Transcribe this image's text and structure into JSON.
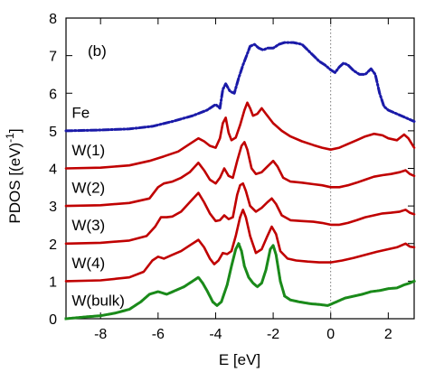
{
  "chart_data": {
    "type": "line",
    "panel_label": "(b)",
    "xlabel": "E [eV]",
    "ylabel": "PDOS [(eV)",
    "ylabel_sup": "-1",
    "ylabel_tail": "]",
    "xlim": [
      -9.2,
      2.9
    ],
    "ylim": [
      0,
      8
    ],
    "x_ticks": [
      -8,
      -6,
      -4,
      -2,
      0,
      2
    ],
    "y_ticks": [
      0,
      1,
      2,
      3,
      4,
      5,
      6,
      7,
      8
    ],
    "fermi_level_line": 0,
    "grid": false,
    "series": [
      {
        "name": "Fe",
        "color": "#1a1aa8",
        "style": "dash-dot",
        "label_anchor": [
          -9.0,
          5.35
        ],
        "points": [
          [
            -9.2,
            5.0
          ],
          [
            -8.0,
            5.02
          ],
          [
            -7.0,
            5.05
          ],
          [
            -6.2,
            5.12
          ],
          [
            -5.5,
            5.25
          ],
          [
            -4.8,
            5.4
          ],
          [
            -4.3,
            5.55
          ],
          [
            -4.0,
            5.7
          ],
          [
            -3.85,
            5.6
          ],
          [
            -3.75,
            6.1
          ],
          [
            -3.65,
            6.25
          ],
          [
            -3.5,
            6.05
          ],
          [
            -3.35,
            6.0
          ],
          [
            -3.2,
            6.4
          ],
          [
            -3.05,
            6.75
          ],
          [
            -2.9,
            7.05
          ],
          [
            -2.8,
            7.25
          ],
          [
            -2.65,
            7.3
          ],
          [
            -2.5,
            7.2
          ],
          [
            -2.35,
            7.15
          ],
          [
            -2.2,
            7.2
          ],
          [
            -2.0,
            7.2
          ],
          [
            -1.8,
            7.3
          ],
          [
            -1.6,
            7.35
          ],
          [
            -1.3,
            7.35
          ],
          [
            -1.0,
            7.3
          ],
          [
            -0.8,
            7.15
          ],
          [
            -0.6,
            7.0
          ],
          [
            -0.4,
            6.85
          ],
          [
            -0.2,
            6.75
          ],
          [
            0.0,
            6.62
          ],
          [
            0.15,
            6.55
          ],
          [
            0.3,
            6.7
          ],
          [
            0.45,
            6.8
          ],
          [
            0.6,
            6.75
          ],
          [
            0.8,
            6.6
          ],
          [
            1.0,
            6.5
          ],
          [
            1.2,
            6.5
          ],
          [
            1.4,
            6.65
          ],
          [
            1.55,
            6.5
          ],
          [
            1.7,
            6.0
          ],
          [
            1.85,
            5.65
          ],
          [
            2.0,
            5.55
          ],
          [
            2.3,
            5.45
          ],
          [
            2.6,
            5.35
          ],
          [
            2.9,
            5.25
          ]
        ]
      },
      {
        "name": "W(1)",
        "color": "#c00000",
        "style": "solid",
        "label_anchor": [
          -9.0,
          4.35
        ],
        "points": [
          [
            -9.2,
            4.0
          ],
          [
            -8.0,
            4.02
          ],
          [
            -7.0,
            4.08
          ],
          [
            -6.3,
            4.2
          ],
          [
            -5.8,
            4.32
          ],
          [
            -5.3,
            4.45
          ],
          [
            -4.9,
            4.65
          ],
          [
            -4.6,
            4.8
          ],
          [
            -4.4,
            4.72
          ],
          [
            -4.2,
            4.6
          ],
          [
            -4.0,
            4.55
          ],
          [
            -3.85,
            4.8
          ],
          [
            -3.75,
            5.2
          ],
          [
            -3.65,
            5.35
          ],
          [
            -3.55,
            4.95
          ],
          [
            -3.45,
            4.75
          ],
          [
            -3.3,
            4.82
          ],
          [
            -3.15,
            5.15
          ],
          [
            -3.0,
            5.55
          ],
          [
            -2.9,
            5.75
          ],
          [
            -2.8,
            5.6
          ],
          [
            -2.7,
            5.4
          ],
          [
            -2.55,
            5.45
          ],
          [
            -2.4,
            5.6
          ],
          [
            -2.25,
            5.45
          ],
          [
            -2.0,
            5.2
          ],
          [
            -1.7,
            5.0
          ],
          [
            -1.4,
            4.85
          ],
          [
            -1.0,
            4.72
          ],
          [
            -0.6,
            4.62
          ],
          [
            -0.3,
            4.55
          ],
          [
            0.0,
            4.5
          ],
          [
            0.3,
            4.55
          ],
          [
            0.6,
            4.65
          ],
          [
            0.9,
            4.75
          ],
          [
            1.2,
            4.85
          ],
          [
            1.5,
            4.92
          ],
          [
            1.8,
            4.88
          ],
          [
            2.0,
            4.8
          ],
          [
            2.3,
            4.75
          ],
          [
            2.55,
            4.9
          ],
          [
            2.7,
            4.8
          ],
          [
            2.9,
            4.55
          ]
        ]
      },
      {
        "name": "W(2)",
        "color": "#c00000",
        "style": "solid",
        "label_anchor": [
          -9.0,
          3.35
        ],
        "points": [
          [
            -9.2,
            3.0
          ],
          [
            -8.0,
            3.02
          ],
          [
            -7.0,
            3.08
          ],
          [
            -6.3,
            3.2
          ],
          [
            -6.0,
            3.5
          ],
          [
            -5.8,
            3.6
          ],
          [
            -5.5,
            3.65
          ],
          [
            -5.2,
            3.75
          ],
          [
            -4.9,
            3.9
          ],
          [
            -4.6,
            4.15
          ],
          [
            -4.4,
            3.95
          ],
          [
            -4.2,
            3.7
          ],
          [
            -4.0,
            3.6
          ],
          [
            -3.85,
            3.75
          ],
          [
            -3.7,
            4.0
          ],
          [
            -3.55,
            3.8
          ],
          [
            -3.4,
            3.75
          ],
          [
            -3.25,
            4.2
          ],
          [
            -3.1,
            4.6
          ],
          [
            -3.0,
            4.7
          ],
          [
            -2.9,
            4.5
          ],
          [
            -2.75,
            4.0
          ],
          [
            -2.6,
            3.85
          ],
          [
            -2.4,
            3.9
          ],
          [
            -2.2,
            4.05
          ],
          [
            -2.0,
            4.2
          ],
          [
            -1.85,
            4.05
          ],
          [
            -1.65,
            3.75
          ],
          [
            -1.4,
            3.65
          ],
          [
            -1.0,
            3.62
          ],
          [
            -0.6,
            3.58
          ],
          [
            -0.3,
            3.55
          ],
          [
            0.0,
            3.5
          ],
          [
            0.3,
            3.5
          ],
          [
            0.6,
            3.55
          ],
          [
            0.9,
            3.62
          ],
          [
            1.2,
            3.7
          ],
          [
            1.5,
            3.78
          ],
          [
            1.8,
            3.82
          ],
          [
            2.1,
            3.85
          ],
          [
            2.4,
            3.9
          ],
          [
            2.6,
            3.95
          ],
          [
            2.75,
            3.85
          ],
          [
            2.9,
            3.8
          ]
        ]
      },
      {
        "name": "W(3)",
        "color": "#c00000",
        "style": "solid",
        "label_anchor": [
          -9.0,
          2.35
        ],
        "points": [
          [
            -9.2,
            2.0
          ],
          [
            -8.0,
            2.02
          ],
          [
            -7.0,
            2.08
          ],
          [
            -6.4,
            2.2
          ],
          [
            -6.1,
            2.45
          ],
          [
            -5.9,
            2.7
          ],
          [
            -5.7,
            2.7
          ],
          [
            -5.5,
            2.72
          ],
          [
            -5.2,
            2.85
          ],
          [
            -4.9,
            3.1
          ],
          [
            -4.6,
            3.35
          ],
          [
            -4.4,
            3.1
          ],
          [
            -4.2,
            2.8
          ],
          [
            -4.0,
            2.6
          ],
          [
            -3.85,
            2.62
          ],
          [
            -3.7,
            2.75
          ],
          [
            -3.55,
            2.65
          ],
          [
            -3.4,
            2.7
          ],
          [
            -3.25,
            3.3
          ],
          [
            -3.15,
            3.55
          ],
          [
            -3.05,
            3.6
          ],
          [
            -2.95,
            3.4
          ],
          [
            -2.8,
            3.0
          ],
          [
            -2.6,
            2.85
          ],
          [
            -2.4,
            2.95
          ],
          [
            -2.2,
            3.1
          ],
          [
            -2.05,
            3.2
          ],
          [
            -1.9,
            3.05
          ],
          [
            -1.7,
            2.75
          ],
          [
            -1.4,
            2.62
          ],
          [
            -1.0,
            2.6
          ],
          [
            -0.6,
            2.58
          ],
          [
            -0.3,
            2.55
          ],
          [
            0.0,
            2.5
          ],
          [
            0.3,
            2.5
          ],
          [
            0.6,
            2.55
          ],
          [
            0.9,
            2.62
          ],
          [
            1.2,
            2.7
          ],
          [
            1.5,
            2.75
          ],
          [
            1.8,
            2.8
          ],
          [
            2.1,
            2.82
          ],
          [
            2.4,
            2.85
          ],
          [
            2.6,
            2.9
          ],
          [
            2.75,
            2.82
          ],
          [
            2.9,
            2.78
          ]
        ]
      },
      {
        "name": "W(4)",
        "color": "#c00000",
        "style": "solid",
        "label_anchor": [
          -9.0,
          1.35
        ],
        "points": [
          [
            -9.2,
            1.0
          ],
          [
            -8.0,
            1.02
          ],
          [
            -7.0,
            1.1
          ],
          [
            -6.5,
            1.25
          ],
          [
            -6.2,
            1.55
          ],
          [
            -6.0,
            1.65
          ],
          [
            -5.8,
            1.6
          ],
          [
            -5.5,
            1.7
          ],
          [
            -5.2,
            1.8
          ],
          [
            -4.9,
            1.95
          ],
          [
            -4.6,
            2.1
          ],
          [
            -4.4,
            1.9
          ],
          [
            -4.2,
            1.6
          ],
          [
            -4.05,
            1.45
          ],
          [
            -3.9,
            1.55
          ],
          [
            -3.75,
            1.75
          ],
          [
            -3.6,
            1.72
          ],
          [
            -3.45,
            1.8
          ],
          [
            -3.3,
            2.2
          ],
          [
            -3.15,
            2.7
          ],
          [
            -3.05,
            2.9
          ],
          [
            -2.95,
            2.7
          ],
          [
            -2.8,
            2.2
          ],
          [
            -2.6,
            1.75
          ],
          [
            -2.4,
            1.85
          ],
          [
            -2.2,
            2.2
          ],
          [
            -2.05,
            2.45
          ],
          [
            -1.9,
            2.25
          ],
          [
            -1.75,
            1.8
          ],
          [
            -1.5,
            1.6
          ],
          [
            -1.2,
            1.55
          ],
          [
            -0.8,
            1.52
          ],
          [
            -0.4,
            1.5
          ],
          [
            0.0,
            1.5
          ],
          [
            0.4,
            1.55
          ],
          [
            0.8,
            1.62
          ],
          [
            1.2,
            1.7
          ],
          [
            1.6,
            1.78
          ],
          [
            2.0,
            1.85
          ],
          [
            2.3,
            1.9
          ],
          [
            2.6,
            2.0
          ],
          [
            2.75,
            1.92
          ],
          [
            2.9,
            1.9
          ]
        ]
      },
      {
        "name": "W(bulk)",
        "color": "#1a8a1a",
        "style": "dotted",
        "label_anchor": [
          -9.0,
          0.35
        ],
        "points": [
          [
            -9.2,
            0.0
          ],
          [
            -8.5,
            0.05
          ],
          [
            -8.0,
            0.08
          ],
          [
            -7.5,
            0.15
          ],
          [
            -7.0,
            0.25
          ],
          [
            -6.6,
            0.45
          ],
          [
            -6.3,
            0.65
          ],
          [
            -6.0,
            0.72
          ],
          [
            -5.7,
            0.65
          ],
          [
            -5.4,
            0.75
          ],
          [
            -5.1,
            0.85
          ],
          [
            -4.8,
            1.0
          ],
          [
            -4.6,
            1.1
          ],
          [
            -4.45,
            0.95
          ],
          [
            -4.3,
            0.75
          ],
          [
            -4.1,
            0.45
          ],
          [
            -3.95,
            0.35
          ],
          [
            -3.8,
            0.45
          ],
          [
            -3.6,
            0.9
          ],
          [
            -3.45,
            1.4
          ],
          [
            -3.3,
            1.85
          ],
          [
            -3.2,
            2.0
          ],
          [
            -3.1,
            1.8
          ],
          [
            -3.0,
            1.4
          ],
          [
            -2.85,
            1.1
          ],
          [
            -2.7,
            0.95
          ],
          [
            -2.55,
            0.85
          ],
          [
            -2.4,
            0.95
          ],
          [
            -2.25,
            1.3
          ],
          [
            -2.1,
            1.85
          ],
          [
            -2.0,
            1.95
          ],
          [
            -1.9,
            1.7
          ],
          [
            -1.75,
            1.0
          ],
          [
            -1.6,
            0.6
          ],
          [
            -1.4,
            0.5
          ],
          [
            -1.1,
            0.45
          ],
          [
            -0.7,
            0.4
          ],
          [
            -0.4,
            0.38
          ],
          [
            -0.1,
            0.35
          ],
          [
            0.2,
            0.45
          ],
          [
            0.5,
            0.55
          ],
          [
            0.8,
            0.6
          ],
          [
            1.1,
            0.65
          ],
          [
            1.4,
            0.72
          ],
          [
            1.7,
            0.75
          ],
          [
            2.0,
            0.8
          ],
          [
            2.3,
            0.82
          ],
          [
            2.55,
            0.9
          ],
          [
            2.75,
            0.95
          ],
          [
            2.9,
            1.0
          ]
        ]
      }
    ]
  }
}
